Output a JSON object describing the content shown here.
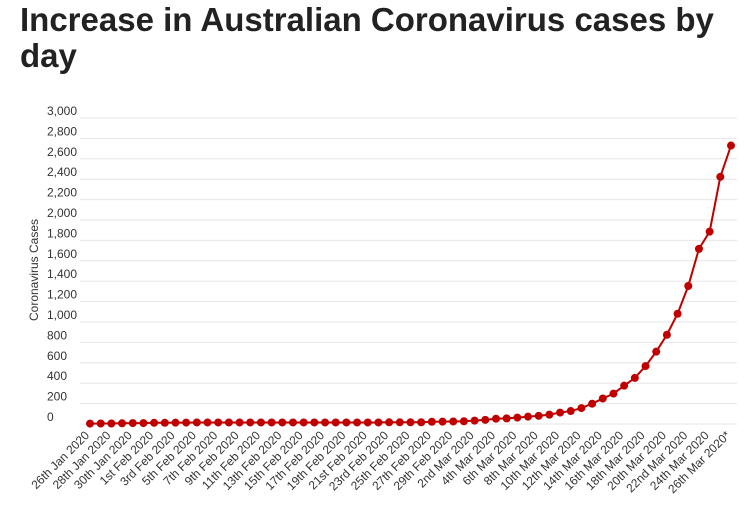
{
  "chart_data": {
    "type": "line",
    "title": "Increase in Australian Coronavirus cases by day",
    "y_label": "Coronavirus Cases",
    "categories": [
      "26th Jan 2020",
      null,
      "28th Jan 2020",
      null,
      "30th Jan 2020",
      null,
      "1st Feb 2020",
      null,
      "3rd Feb 2020",
      null,
      "5th Feb 2020",
      null,
      "7th Feb 2020",
      null,
      "9th Feb 2020",
      null,
      "11th Feb 2020",
      null,
      "13th Feb 2020",
      null,
      "15th Feb 2020",
      null,
      "17th Feb 2020",
      null,
      "19th Feb 2020",
      null,
      "21st Feb 2020",
      null,
      "23rd Feb 2020",
      null,
      "25th Feb 2020",
      null,
      "27th Feb 2020",
      null,
      "29th Feb 2020",
      null,
      "2nd Mar 2020",
      null,
      "4th Mar 2020",
      null,
      "6th Mar 2020",
      null,
      "8th Mar 2020",
      null,
      "10th Mar 2020",
      null,
      "12th Mar 2020",
      null,
      "14th Mar 2020",
      null,
      "16th Mar 2020",
      null,
      "18th Mar 2020",
      null,
      "20th Mar 2020",
      null,
      "22nd Mar 2020",
      null,
      "24th Mar 2020",
      null,
      "26th Mar 2020*"
    ],
    "series": [
      {
        "name": "Coronavirus Cases",
        "color": "#c00000",
        "values": [
          4,
          5,
          5,
          7,
          9,
          9,
          12,
          12,
          13,
          14,
          15,
          15,
          15,
          15,
          15,
          15,
          15,
          15,
          15,
          15,
          15,
          15,
          15,
          15,
          15,
          15,
          15,
          15,
          17,
          17,
          17,
          17,
          22,
          23,
          25,
          27,
          33,
          41,
          52,
          55,
          63,
          72,
          80,
          92,
          112,
          127,
          156,
          199,
          250,
          298,
          376,
          452,
          568,
          709,
          875,
          1081,
          1353,
          1717,
          1886,
          2423,
          2730
        ]
      }
    ],
    "ylim": [
      0,
      3000
    ],
    "yticks": [
      0,
      200,
      400,
      600,
      800,
      {
        "value": 1000,
        "label": "1,000"
      },
      {
        "value": 1200,
        "label": "1,200"
      },
      {
        "value": 1400,
        "label": "1,400"
      },
      {
        "value": 1600,
        "label": "1,600"
      },
      {
        "value": 1800,
        "label": "1,800"
      },
      {
        "value": 2000,
        "label": "2,000"
      },
      {
        "value": 2200,
        "label": "2,200"
      },
      {
        "value": 2400,
        "label": "2,400"
      },
      {
        "value": 2600,
        "label": "2,600"
      },
      {
        "value": 2800,
        "label": "2,800"
      },
      {
        "value": 3000,
        "label": "3,000"
      }
    ],
    "grid": true
  }
}
